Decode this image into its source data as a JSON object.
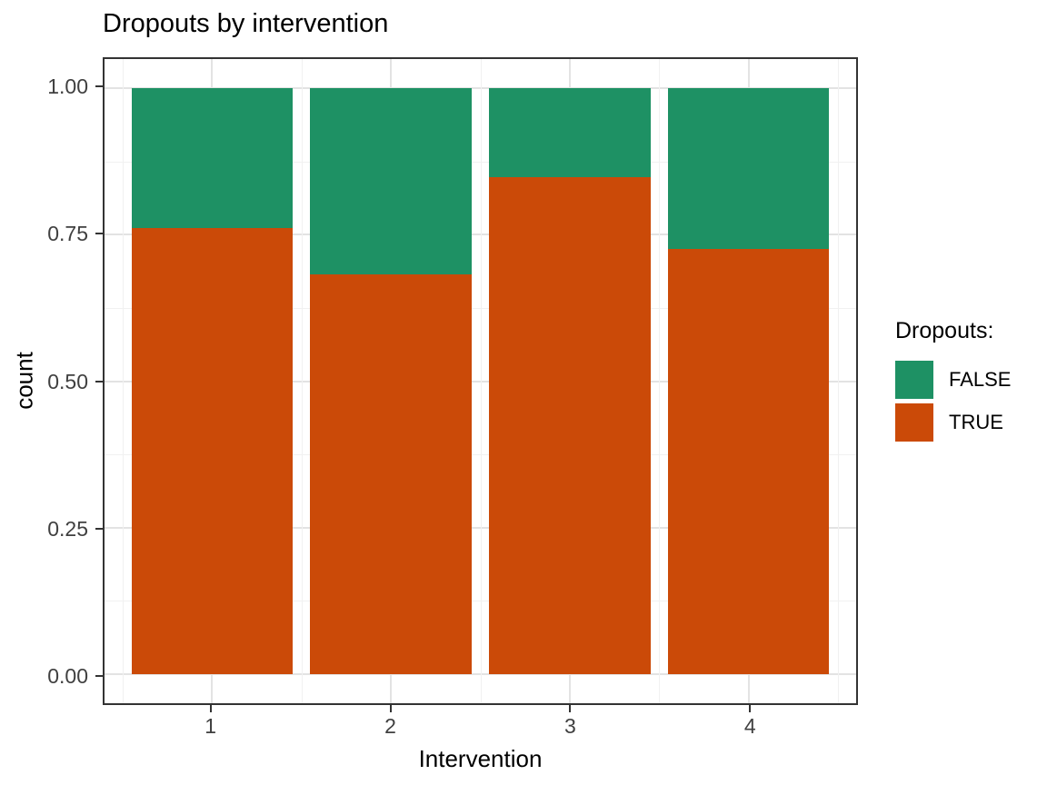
{
  "title": "Dropouts by intervention",
  "axes": {
    "x": {
      "label": "Intervention",
      "ticks": [
        {
          "label": "1",
          "pos": 1
        },
        {
          "label": "2",
          "pos": 2
        },
        {
          "label": "3",
          "pos": 3
        },
        {
          "label": "4",
          "pos": 4
        }
      ]
    },
    "y": {
      "label": "count",
      "ticks": [
        {
          "label": "1.00",
          "value": 1.0
        },
        {
          "label": "0.75",
          "value": 0.75
        },
        {
          "label": "0.50",
          "value": 0.5
        },
        {
          "label": "0.25",
          "value": 0.25
        },
        {
          "label": "0.00",
          "value": 0.0
        }
      ]
    }
  },
  "legend": {
    "title": "Dropouts:",
    "items": [
      {
        "label": "FALSE",
        "color": "#1E9164"
      },
      {
        "label": "TRUE",
        "color": "#CB4A08"
      }
    ]
  },
  "colors": {
    "false_green": "#1E9164",
    "true_orange": "#CB4A08",
    "grid_major": "#e3e3e3",
    "grid_minor": "#f1f1f1",
    "panel_border": "#333333",
    "tick_label": "#404040"
  },
  "chart_data": {
    "type": "bar",
    "stacked": true,
    "normalized": true,
    "title": "Dropouts by intervention",
    "xlabel": "Intervention",
    "ylabel": "count",
    "categories": [
      "1",
      "2",
      "3",
      "4"
    ],
    "positions": [
      1,
      2,
      3,
      4
    ],
    "series": [
      {
        "name": "TRUE",
        "color": "#CB4A08",
        "values": [
          0.762,
          0.683,
          0.849,
          0.725
        ]
      },
      {
        "name": "FALSE",
        "color": "#1E9164",
        "values": [
          0.238,
          0.317,
          0.151,
          0.275
        ]
      }
    ],
    "xlim": [
      0.4,
      4.6
    ],
    "ylim": [
      -0.05,
      1.05
    ],
    "y_major_gridlines": [
      0.0,
      0.25,
      0.5,
      0.75,
      1.0
    ],
    "y_minor_gridlines": [
      0.125,
      0.375,
      0.625,
      0.875
    ],
    "x_major_gridlines": [
      1,
      2,
      3,
      4
    ],
    "x_minor_gridlines": [
      0.5,
      1.5,
      2.5,
      3.5,
      4.5
    ],
    "bar_width_fraction": 0.9,
    "grid": true,
    "legend_position": "right"
  }
}
